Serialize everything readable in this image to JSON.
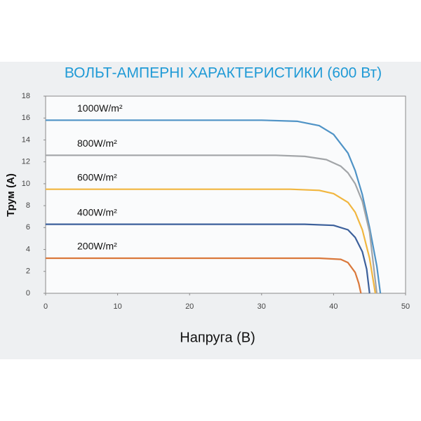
{
  "chart_data": {
    "type": "line",
    "title": "ВОЛЬТ-АМПЕРНІ ХАРАКТЕРИСТИКИ (600 Вт)",
    "x_label": "Напруга (В)",
    "y_label": "Трум (А)",
    "xlim": [
      0,
      50
    ],
    "ylim": [
      0,
      18
    ],
    "xticks": [
      0,
      10,
      20,
      30,
      40,
      50
    ],
    "yticks": [
      0,
      2,
      4,
      6,
      8,
      10,
      12,
      14,
      16,
      18
    ],
    "series": [
      {
        "name": "1000W/m²",
        "color": "#4f93c6",
        "x": [
          0,
          30,
          35,
          38,
          40,
          42,
          43,
          44,
          45,
          46,
          46.5
        ],
        "values": [
          15.8,
          15.8,
          15.7,
          15.3,
          14.5,
          12.8,
          11.2,
          9,
          6,
          2.5,
          0
        ]
      },
      {
        "name": "800W/m²",
        "color": "#a2a5a8",
        "x": [
          0,
          32,
          36,
          39,
          41,
          42,
          43,
          44,
          45,
          46
        ],
        "values": [
          12.6,
          12.6,
          12.5,
          12.2,
          11.6,
          11,
          10,
          8.4,
          5.6,
          0
        ]
      },
      {
        "name": "600W/m²",
        "color": "#f1b63f",
        "x": [
          0,
          34,
          38,
          40,
          42,
          43,
          44,
          45,
          45.8
        ],
        "values": [
          9.5,
          9.5,
          9.4,
          9.1,
          8.3,
          7.4,
          5.8,
          3.2,
          0
        ]
      },
      {
        "name": "400W/m²",
        "color": "#3c609b",
        "x": [
          0,
          36,
          40,
          42,
          43,
          44,
          44.6,
          45
        ],
        "values": [
          6.3,
          6.3,
          6.2,
          5.8,
          5.1,
          3.8,
          2.2,
          0
        ]
      },
      {
        "name": "200W/m²",
        "color": "#da783b",
        "x": [
          0,
          38,
          41,
          42,
          43,
          43.5,
          43.8
        ],
        "values": [
          3.2,
          3.2,
          3.1,
          2.8,
          1.9,
          0.9,
          0
        ]
      }
    ]
  }
}
